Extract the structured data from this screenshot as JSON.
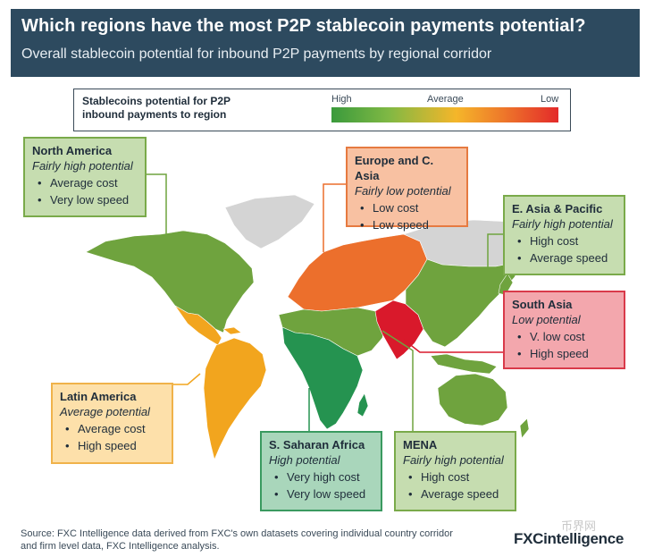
{
  "header": {
    "title": "Which regions have the most P2P stablecoin payments potential?",
    "subtitle": "Overall stablecoin potential for inbound P2P payments by regional corridor"
  },
  "legend": {
    "text_line1": "Stablecoins potential for P2P",
    "text_line2": "inbound payments to region",
    "high": "High",
    "average": "Average",
    "low": "Low",
    "colors": [
      "#3a9a3c",
      "#7fb844",
      "#f5b62a",
      "#ee7a2a",
      "#e32a2a"
    ]
  },
  "regions": {
    "north_america": {
      "name": "North America",
      "potential": "Fairly high potential",
      "bullets": [
        "Average cost",
        "Very low speed"
      ],
      "color": "#6fa33e"
    },
    "europe": {
      "name": "Europe and C. Asia",
      "potential": "Fairly low potential",
      "bullets": [
        "Low cost",
        "Low speed"
      ],
      "color": "#ec6f2c"
    },
    "east_asia": {
      "name": "E. Asia & Pacific",
      "potential": "Fairly high potential",
      "bullets": [
        "High cost",
        "Average speed"
      ],
      "color": "#6fa33e"
    },
    "south_asia": {
      "name": "South Asia",
      "potential": "Low potential",
      "bullets": [
        "V. low cost",
        "High speed"
      ],
      "color": "#d9192b"
    },
    "latin_america": {
      "name": "Latin America",
      "potential": "Average potential",
      "bullets": [
        "Average cost",
        "High speed"
      ],
      "color": "#f2a51e"
    },
    "ss_africa": {
      "name": "S. Saharan Africa",
      "potential": "High potential",
      "bullets": [
        "Very high cost",
        "Very low speed"
      ],
      "color": "#259350"
    },
    "mena": {
      "name": "MENA",
      "potential": "Fairly high potential",
      "bullets": [
        "High cost",
        "Average speed"
      ],
      "color": "#6fa33e"
    }
  },
  "source_line1": "Source: FXC Intelligence data derived from FXC's own datasets covering individual country corridor",
  "source_line2": "and firm level data, FXC Intelligence analysis.",
  "logo": "FXCintelligence",
  "watermark": "币界网"
}
